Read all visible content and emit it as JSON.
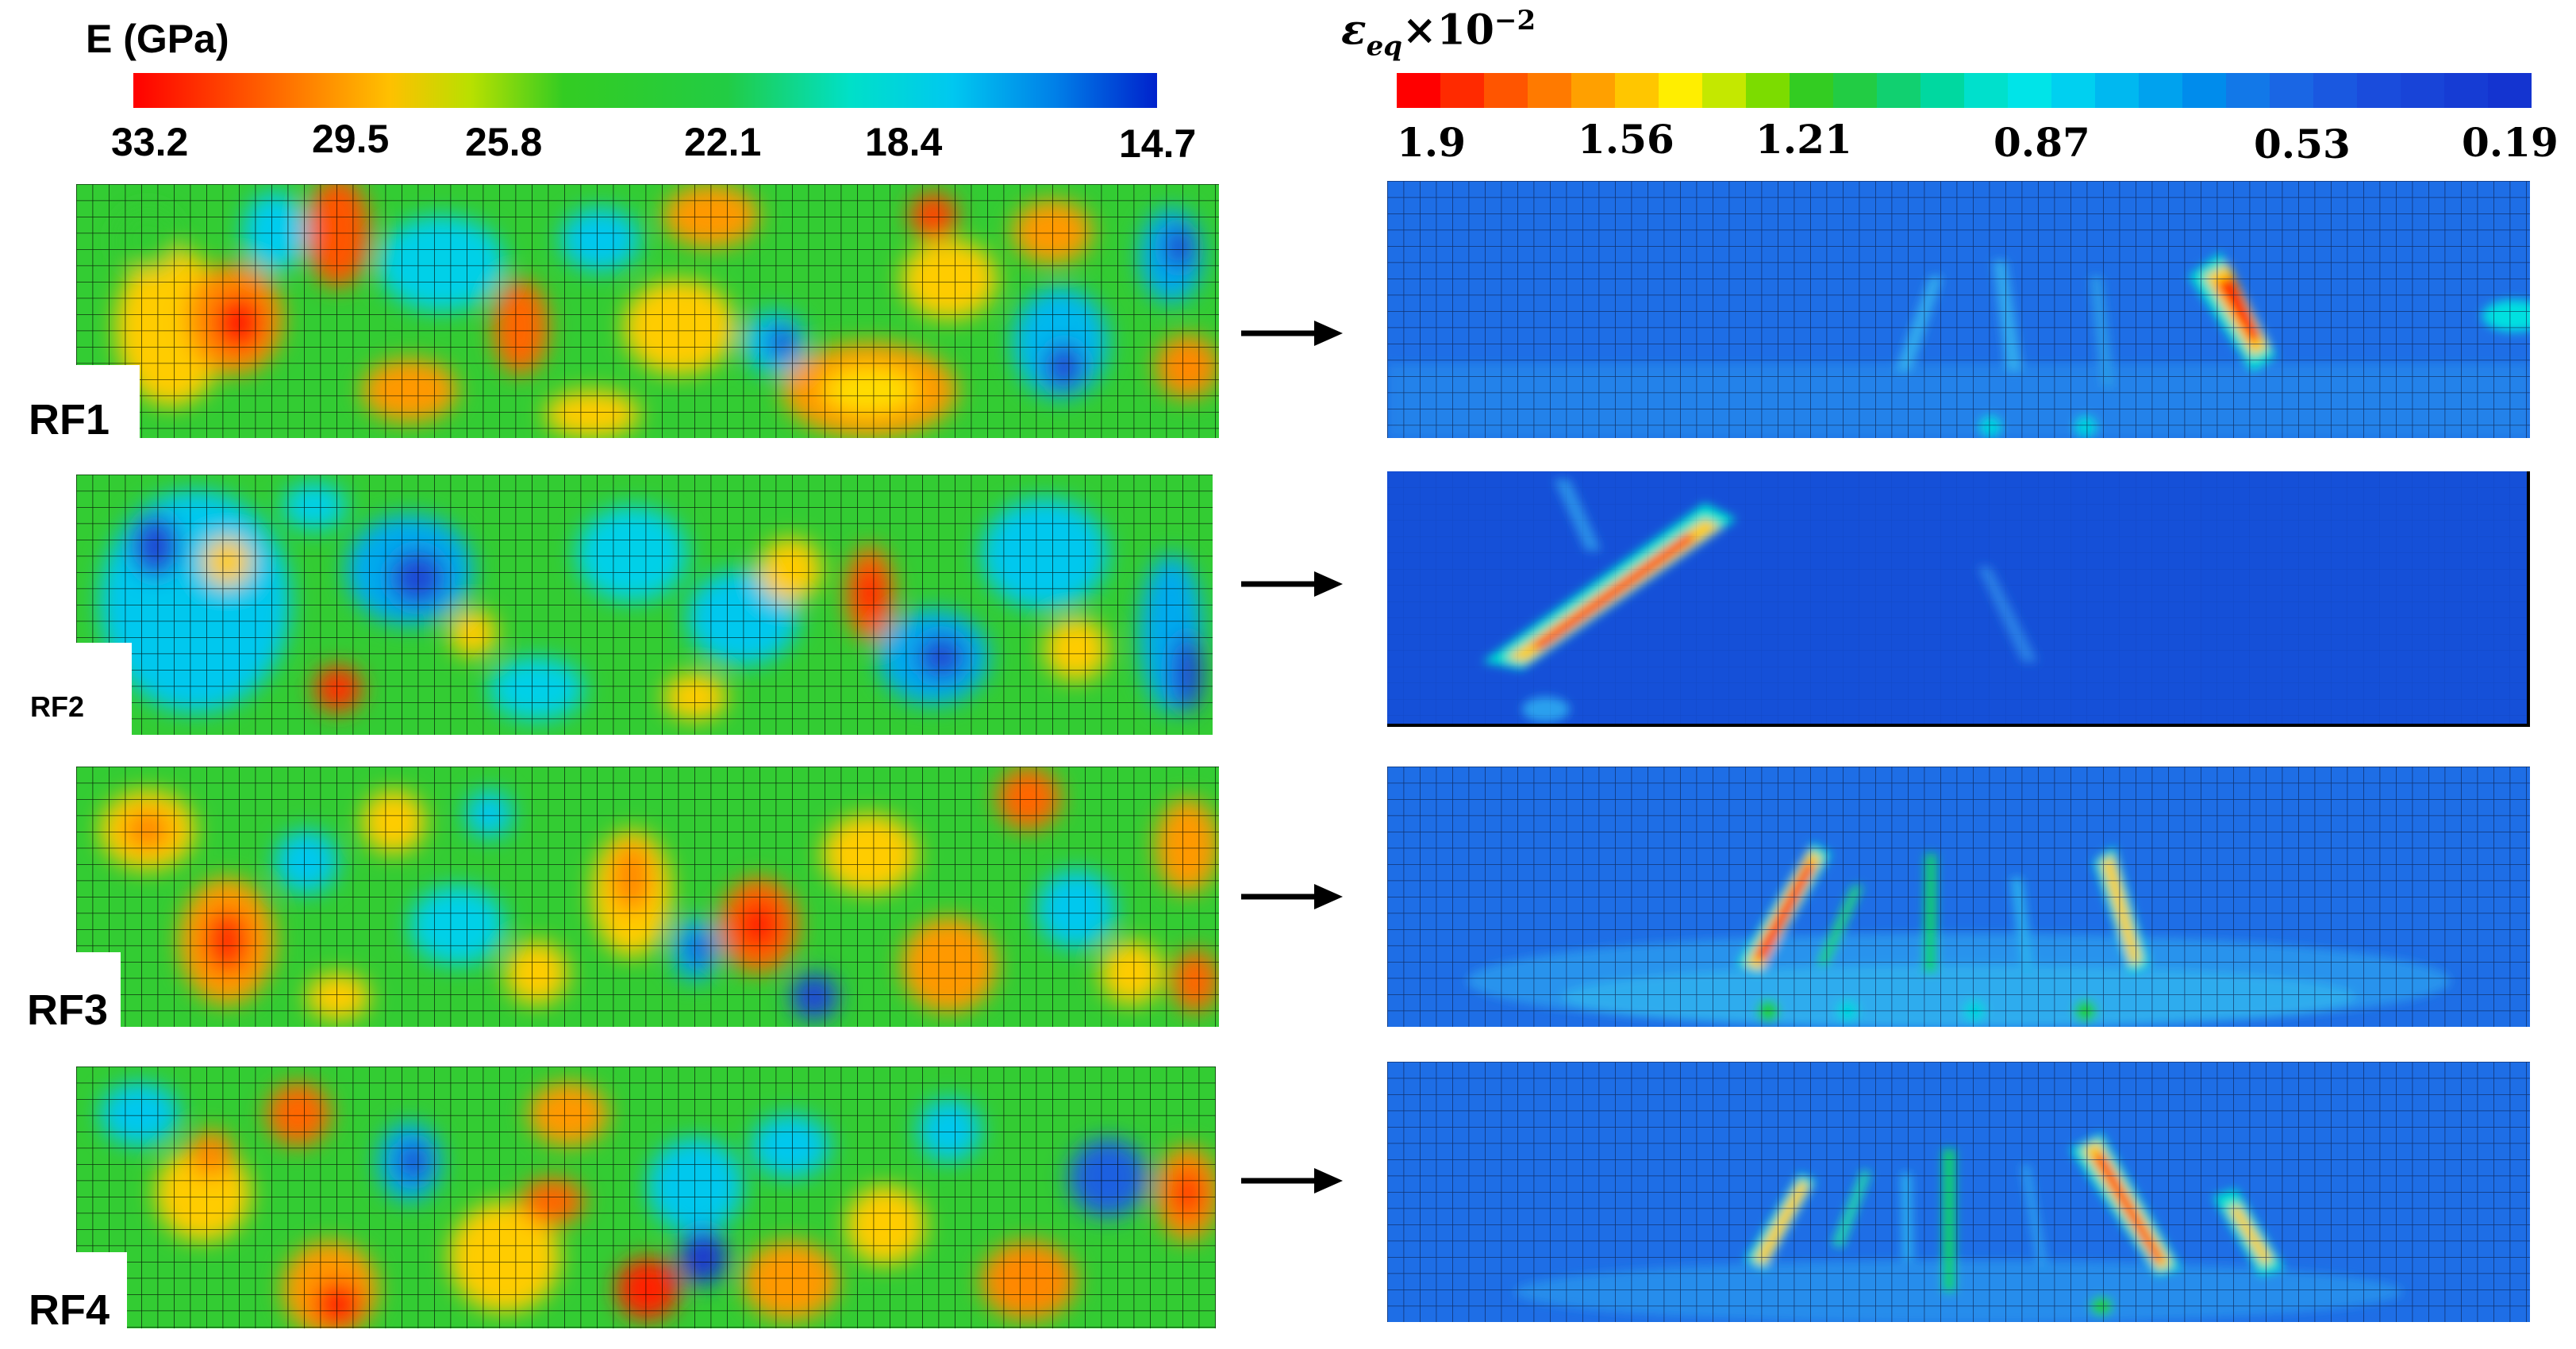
{
  "colors": {
    "modulus_scale": [
      "#ff0000",
      "#ff6600",
      "#ffcc00",
      "#66dd00",
      "#22cc22",
      "#11dd88",
      "#00e0e0",
      "#00a0ee",
      "#0033cc"
    ],
    "strain_background": "#1e6ee6",
    "strain_dark_background": "#1550d8"
  },
  "colorbars": {
    "modulus": {
      "title": "E (GPa)",
      "ticks": [
        "33.2",
        "29.5",
        "25.8",
        "22.1",
        "18.4",
        "14.7"
      ]
    },
    "strain": {
      "title_symbol": "ε",
      "title_subscript": "eq",
      "title_factor": "×10",
      "title_exponent": "−2",
      "ticks": [
        "1.9",
        "1.56",
        "1.21",
        "0.87",
        "0.53",
        "0.19"
      ]
    }
  },
  "rows": [
    {
      "label": "RF1"
    },
    {
      "label": "RF2"
    },
    {
      "label": "RF3"
    },
    {
      "label": "RF4"
    }
  ]
}
